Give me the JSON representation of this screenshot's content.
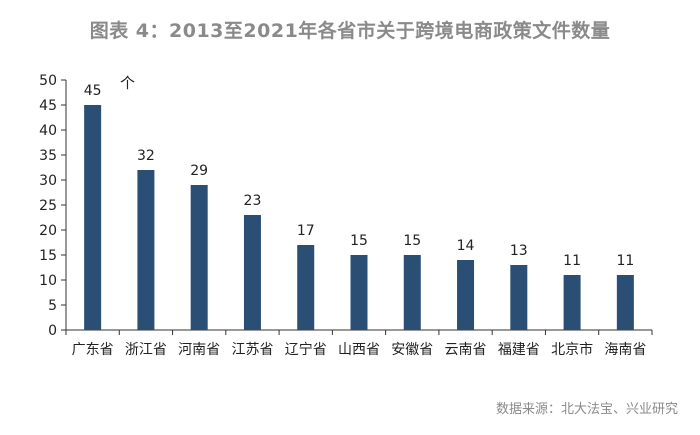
{
  "chart_data": {
    "type": "bar",
    "title": "图表 4：2013至2021年各省市关于跨境电商政策文件数量",
    "unit_label": "个",
    "categories": [
      "广东省",
      "浙江省",
      "河南省",
      "江苏省",
      "辽宁省",
      "山西省",
      "安徽省",
      "云南省",
      "福建省",
      "北京市",
      "海南省"
    ],
    "values": [
      45,
      32,
      29,
      23,
      17,
      15,
      15,
      14,
      13,
      11,
      11
    ],
    "ylim": [
      0,
      50
    ],
    "yticks": [
      0,
      5,
      10,
      15,
      20,
      25,
      30,
      35,
      40,
      45,
      50
    ],
    "grid": false,
    "bar_color": "#2b4f74",
    "source": "数据来源：北大法宝、兴业研究"
  }
}
